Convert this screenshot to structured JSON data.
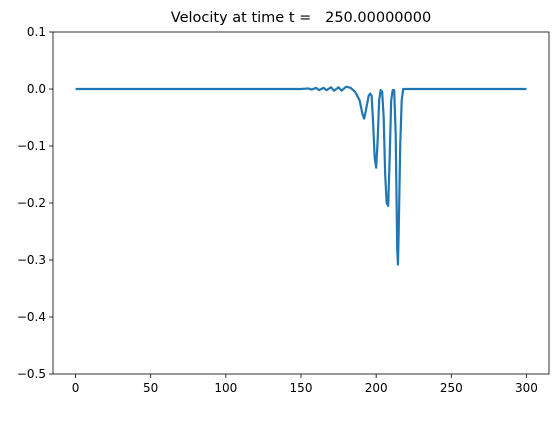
{
  "chart_data": {
    "type": "line",
    "title": "Velocity at time t =   250.00000000",
    "x": [
      0,
      150,
      155,
      157,
      160,
      162,
      165,
      167,
      170,
      172,
      175,
      177,
      180,
      183,
      186,
      189,
      191,
      192,
      193,
      195,
      196,
      197,
      198,
      199,
      200,
      201,
      202,
      203,
      204,
      205,
      206,
      207,
      208,
      209,
      210,
      211,
      212,
      213,
      214,
      214.5,
      215,
      216,
      217,
      218,
      220,
      300
    ],
    "series": [
      {
        "color": "#1f77b4",
        "values": [
          0,
          0,
          0.001,
          -0.001,
          0.002,
          -0.002,
          0.002,
          -0.002,
          0.003,
          -0.003,
          0.003,
          -0.003,
          0.004,
          0.002,
          -0.005,
          -0.02,
          -0.045,
          -0.052,
          -0.04,
          -0.012,
          -0.008,
          -0.012,
          -0.06,
          -0.12,
          -0.138,
          -0.09,
          -0.02,
          -0.002,
          -0.005,
          -0.05,
          -0.15,
          -0.2,
          -0.205,
          -0.12,
          -0.02,
          -0.002,
          -0.002,
          -0.08,
          -0.28,
          -0.308,
          -0.25,
          -0.1,
          -0.02,
          0,
          0,
          0
        ]
      }
    ],
    "xlim": [
      -15,
      315
    ],
    "ylim": [
      -0.5,
      0.1
    ],
    "xticks": [
      0,
      50,
      100,
      150,
      200,
      250,
      300
    ],
    "yticks": [
      0.1,
      {
        "value": 0,
        "label": "0.0"
      },
      {
        "value": -0.1,
        "label": "−0.1"
      },
      {
        "value": -0.2,
        "label": "−0.2"
      },
      {
        "value": -0.3,
        "label": "−0.3"
      },
      {
        "value": -0.4,
        "label": "−0.4"
      },
      {
        "value": -0.5,
        "label": "−0.5"
      }
    ]
  }
}
